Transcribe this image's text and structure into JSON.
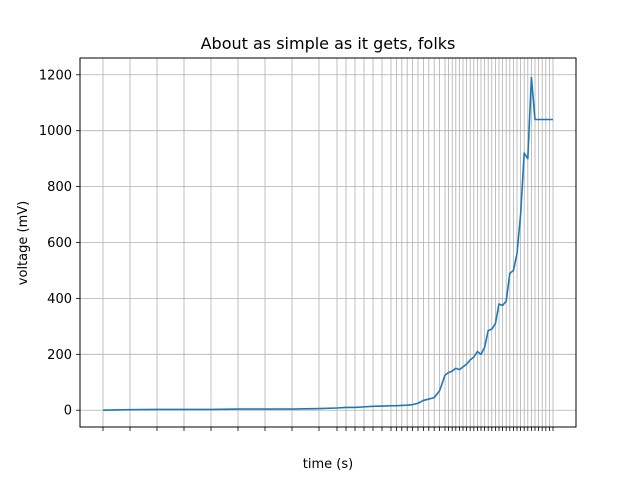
{
  "chart_data": {
    "type": "line",
    "title": "About as simple as it gets, folks",
    "xlabel": "time (s)",
    "ylabel": "voltage (mV)",
    "ylim": [
      -60,
      1260
    ],
    "yticks": [
      0,
      200,
      400,
      600,
      800,
      1000,
      1200
    ],
    "grid": true,
    "line_color": "#1f77b4",
    "series": [
      {
        "x": [
          0,
          15,
          30,
          45,
          60,
          75,
          90,
          105,
          120,
          130,
          135,
          140,
          145,
          150,
          155,
          160,
          163,
          166,
          169,
          172,
          175,
          178,
          181,
          184,
          187,
          190,
          192,
          194,
          196,
          198,
          200,
          202,
          204,
          206,
          208,
          210,
          212,
          214,
          216,
          218,
          220,
          222,
          224,
          226,
          228,
          230,
          232,
          234,
          236,
          238,
          240,
          242,
          244,
          246,
          248,
          250
        ],
        "values": [
          0,
          2,
          3,
          3,
          3,
          4,
          4,
          4,
          6,
          8,
          10,
          10,
          12,
          14,
          15,
          16,
          16,
          17,
          18,
          20,
          25,
          35,
          40,
          45,
          70,
          125,
          135,
          140,
          150,
          145,
          155,
          165,
          180,
          190,
          210,
          200,
          225,
          285,
          290,
          310,
          380,
          375,
          390,
          490,
          500,
          560,
          700,
          920,
          900,
          1190,
          1040,
          1040,
          1040,
          1040,
          1040,
          1040
        ]
      }
    ]
  }
}
